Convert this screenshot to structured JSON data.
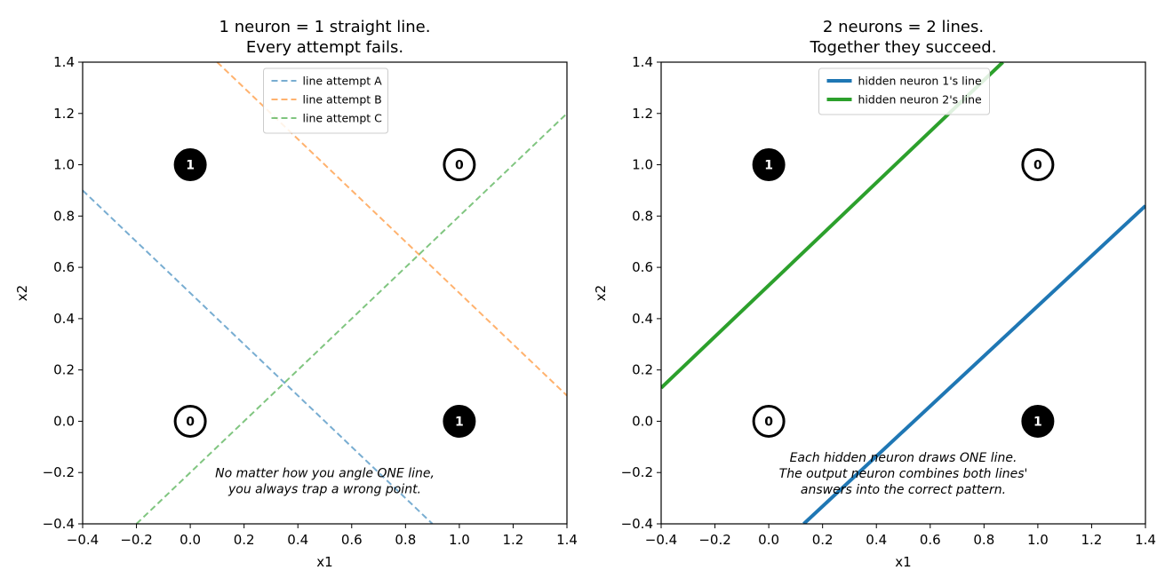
{
  "chart_data": [
    {
      "type": "line",
      "title": [
        "1 neuron = 1 straight line.",
        "Every attempt fails."
      ],
      "xlabel": "x1",
      "ylabel": "x2",
      "xlim": [
        -0.4,
        1.4
      ],
      "ylim": [
        -0.4,
        1.4
      ],
      "x_ticks": [
        "−0.4",
        "−0.2",
        "0.0",
        "0.2",
        "0.4",
        "0.6",
        "0.8",
        "1.0",
        "1.2",
        "1.4"
      ],
      "y_ticks": [
        "−0.4",
        "−0.2",
        "0.0",
        "0.2",
        "0.4",
        "0.6",
        "0.8",
        "1.0",
        "1.2",
        "1.4"
      ],
      "grid": false,
      "legend_position": "top-center",
      "series": [
        {
          "name": "line attempt A",
          "color": "#1f77b4",
          "style": "dashed",
          "x": [
            -0.4,
            0.9
          ],
          "y": [
            0.9,
            -0.4
          ]
        },
        {
          "name": "line attempt B",
          "color": "#ff7f0e",
          "style": "dashed",
          "x": [
            0.1,
            1.4
          ],
          "y": [
            1.4,
            0.1
          ]
        },
        {
          "name": "line attempt C",
          "color": "#2ca02c",
          "style": "dashed",
          "x": [
            -0.2,
            1.4
          ],
          "y": [
            -0.4,
            1.2
          ]
        }
      ],
      "points": [
        {
          "x": 0,
          "y": 1,
          "label": "1",
          "filled": true
        },
        {
          "x": 1,
          "y": 1,
          "label": "0",
          "filled": false
        },
        {
          "x": 0,
          "y": 0,
          "label": "0",
          "filled": false
        },
        {
          "x": 1,
          "y": 0,
          "label": "1",
          "filled": true
        }
      ],
      "annotation": {
        "x": 0.5,
        "y": -0.25,
        "lines": [
          "No matter how you angle ONE line,",
          "you always trap a wrong point."
        ]
      }
    },
    {
      "type": "line",
      "title": [
        "2 neurons = 2 lines.",
        "Together they succeed."
      ],
      "xlabel": "x1",
      "ylabel": "x2",
      "xlim": [
        -0.4,
        1.4
      ],
      "ylim": [
        -0.4,
        1.4
      ],
      "x_ticks": [
        "−0.4",
        "−0.2",
        "0.0",
        "0.2",
        "0.4",
        "0.6",
        "0.8",
        "1.0",
        "1.2",
        "1.4"
      ],
      "y_ticks": [
        "−0.4",
        "−0.2",
        "0.0",
        "0.2",
        "0.4",
        "0.6",
        "0.8",
        "1.0",
        "1.2",
        "1.4"
      ],
      "grid": false,
      "legend_position": "top-center",
      "series": [
        {
          "name": "hidden neuron 1's line",
          "color": "#1f77b4",
          "style": "solid",
          "x": [
            0.13,
            1.4
          ],
          "y": [
            -0.4,
            0.84
          ]
        },
        {
          "name": "hidden neuron 2's line",
          "color": "#2ca02c",
          "style": "solid",
          "x": [
            -0.4,
            0.87
          ],
          "y": [
            0.13,
            1.4
          ]
        }
      ],
      "points": [
        {
          "x": 0,
          "y": 1,
          "label": "1",
          "filled": true
        },
        {
          "x": 1,
          "y": 1,
          "label": "0",
          "filled": false
        },
        {
          "x": 0,
          "y": 0,
          "label": "0",
          "filled": false
        },
        {
          "x": 1,
          "y": 0,
          "label": "1",
          "filled": true
        }
      ],
      "annotation": {
        "x": 0.5,
        "y": -0.22,
        "lines": [
          "Each hidden neuron draws ONE line.",
          "The output neuron combines both lines'",
          "answers into the correct pattern."
        ]
      }
    }
  ]
}
